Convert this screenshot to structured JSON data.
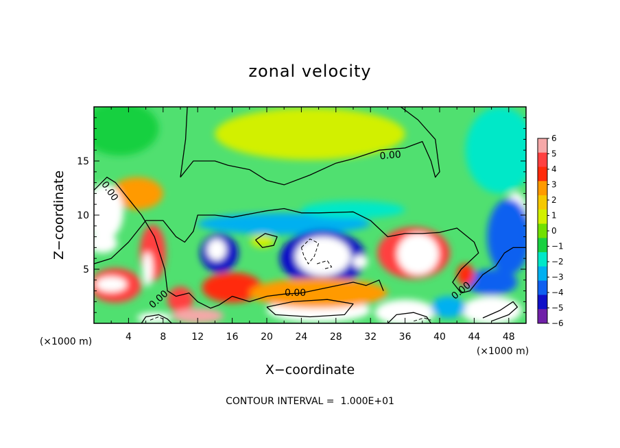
{
  "chart_data": {
    "type": "heatmap",
    "title": "zonal velocity",
    "xlabel": "X−coordinate",
    "ylabel": "Z−coordinate",
    "x_unit": "(×1000 m)",
    "y_unit": "(×1000 m)",
    "xlim": [
      0,
      50
    ],
    "ylim": [
      0,
      20
    ],
    "x_ticks": [
      4,
      8,
      12,
      16,
      20,
      24,
      28,
      32,
      36,
      40,
      44,
      48
    ],
    "y_ticks": [
      5,
      10,
      15
    ],
    "colorbar": {
      "min": -6,
      "max": 6,
      "ticks": [
        6,
        5,
        4,
        3,
        2,
        1,
        0,
        -1,
        -2,
        -3,
        -4,
        -5,
        -6
      ],
      "tick_labels": [
        "6",
        "5",
        "4",
        "3",
        "2",
        "1",
        "0",
        "−1",
        "−2",
        "−3",
        "−4",
        "−5",
        "−6"
      ],
      "colors": [
        "#f5a8a8",
        "#ff4040",
        "#ff2a0a",
        "#ff9a00",
        "#f5c800",
        "#d2f000",
        "#70e000",
        "#18d040",
        "#00e8c8",
        "#00b0f0",
        "#1060f0",
        "#1010c8",
        "#7020a8"
      ],
      "placement": "right"
    },
    "contour_label": "0.00",
    "footer": "CONTOUR INTERVAL =  1.000E+01",
    "regions": [
      {
        "x": 25,
        "y": 17.5,
        "rx": 11,
        "ry": 2.4,
        "value": 0.8
      },
      {
        "x": 20,
        "y": 18,
        "rx": 4,
        "ry": 1.5,
        "value": 1.0
      },
      {
        "x": 3,
        "y": 18,
        "rx": 4.5,
        "ry": 2.5,
        "value": -1.5
      },
      {
        "x": 47,
        "y": 16,
        "rx": 4,
        "ry": 4,
        "value": -2.2
      },
      {
        "x": 5,
        "y": 12,
        "rx": 3,
        "ry": 1.5,
        "value": 2.5
      },
      {
        "x": 22,
        "y": 9.2,
        "rx": 10,
        "ry": 1.0,
        "value": -2.8
      },
      {
        "x": 30,
        "y": 10.5,
        "rx": 6,
        "ry": 0.8,
        "value": -1.7
      },
      {
        "x": 1.2,
        "y": 10.3,
        "rx": 2.2,
        "ry": 2.6,
        "value": -6.5
      },
      {
        "x": 1,
        "y": 7.4,
        "rx": 1.7,
        "ry": 0.9,
        "value": -6.5
      },
      {
        "x": 6.8,
        "y": 6.5,
        "rx": 1.5,
        "ry": 2.6,
        "value": 5.4
      },
      {
        "x": 6.2,
        "y": 5,
        "rx": 0.6,
        "ry": 1.6,
        "value": 6.6
      },
      {
        "x": 2.5,
        "y": 3.5,
        "rx": 3,
        "ry": 1.6,
        "value": 4.5
      },
      {
        "x": 2,
        "y": 3.6,
        "rx": 1.8,
        "ry": 0.7,
        "value": 6.6
      },
      {
        "x": 14.5,
        "y": 6.5,
        "rx": 2.2,
        "ry": 1.8,
        "value": -5.2
      },
      {
        "x": 14.2,
        "y": 6.8,
        "rx": 1.1,
        "ry": 1.0,
        "value": -6.5
      },
      {
        "x": 19.5,
        "y": 7.6,
        "rx": 1.4,
        "ry": 0.6,
        "value": 0.5
      },
      {
        "x": 26.5,
        "y": 6,
        "rx": 5,
        "ry": 2.6,
        "value": -5.5
      },
      {
        "x": 26.5,
        "y": 6.2,
        "rx": 3.2,
        "ry": 1.8,
        "value": -6.6
      },
      {
        "x": 30.8,
        "y": 5.7,
        "rx": 0.9,
        "ry": 0.6,
        "value": -6.6
      },
      {
        "x": 37,
        "y": 6.5,
        "rx": 4.2,
        "ry": 2.4,
        "value": 5.2
      },
      {
        "x": 37.5,
        "y": 6.4,
        "rx": 2.4,
        "ry": 1.9,
        "value": 6.6
      },
      {
        "x": 16,
        "y": 3.3,
        "rx": 3.5,
        "ry": 1.4,
        "value": 4.0
      },
      {
        "x": 10,
        "y": 2.2,
        "rx": 1.5,
        "ry": 1.2,
        "value": 4.5
      },
      {
        "x": 26,
        "y": 1.2,
        "rx": 6,
        "ry": 1.1,
        "value": 6.6
      },
      {
        "x": 26,
        "y": 2.8,
        "rx": 8,
        "ry": 1.4,
        "value": 3.0
      },
      {
        "x": 36,
        "y": 1.0,
        "rx": 3.5,
        "ry": 1.2,
        "value": -6.6
      },
      {
        "x": 46,
        "y": 1.2,
        "rx": 3.5,
        "ry": 1.3,
        "value": 6.6
      },
      {
        "x": 46,
        "y": 3.8,
        "rx": 3,
        "ry": 1.2,
        "value": -4.0
      },
      {
        "x": 48.8,
        "y": 9.5,
        "rx": 1.5,
        "ry": 2.6,
        "value": -6.6
      },
      {
        "x": 48,
        "y": 8,
        "rx": 2.5,
        "ry": 3.5,
        "value": -4.5
      },
      {
        "x": 43,
        "y": 4.5,
        "rx": 1.0,
        "ry": 1.0,
        "value": 3.5
      },
      {
        "x": 12,
        "y": 0.7,
        "rx": 3,
        "ry": 0.7,
        "value": 5.5
      },
      {
        "x": 7,
        "y": 0.5,
        "rx": 2,
        "ry": 0.5,
        "value": -6.6
      },
      {
        "x": 41,
        "y": 1.5,
        "rx": 2,
        "ry": 1.0,
        "value": -3.5
      }
    ],
    "contours": [
      {
        "points": [
          [
            0,
            5.5
          ],
          [
            2,
            6
          ],
          [
            4,
            7.5
          ],
          [
            6,
            9.5
          ],
          [
            8,
            9.5
          ],
          [
            9.5,
            8
          ],
          [
            10.5,
            7.5
          ],
          [
            11.5,
            8.5
          ],
          [
            12,
            10
          ],
          [
            14,
            10
          ],
          [
            16,
            9.8
          ],
          [
            20,
            10.4
          ],
          [
            22,
            10.6
          ],
          [
            24,
            10.2
          ],
          [
            26,
            10.2
          ],
          [
            30,
            10.3
          ],
          [
            32,
            9.5
          ],
          [
            34,
            8
          ],
          [
            36,
            8.3
          ],
          [
            38,
            8.3
          ],
          [
            40,
            8.4
          ],
          [
            42,
            8.8
          ],
          [
            44,
            7.5
          ],
          [
            44.5,
            6.5
          ],
          [
            42.5,
            5
          ],
          [
            41.5,
            3.8
          ],
          [
            42.5,
            2.8
          ],
          [
            43.5,
            3
          ],
          [
            45,
            4.5
          ],
          [
            46.5,
            5.3
          ],
          [
            47.5,
            6.5
          ],
          [
            48.5,
            7
          ],
          [
            50,
            7
          ]
        ]
      },
      {
        "points": [
          [
            0,
            12.3
          ],
          [
            1.5,
            13.5
          ],
          [
            2.5,
            13
          ],
          [
            4,
            11.5
          ],
          [
            5.5,
            10
          ],
          [
            7,
            8
          ],
          [
            8.2,
            5
          ],
          [
            8.5,
            3
          ],
          [
            9.5,
            2.5
          ],
          [
            11,
            2.8
          ],
          [
            12,
            2
          ],
          [
            13.5,
            1.4
          ],
          [
            14.5,
            1.7
          ],
          [
            16,
            2.5
          ],
          [
            18,
            2
          ],
          [
            20,
            2.5
          ],
          [
            22,
            2.7
          ],
          [
            24,
            2.8
          ],
          [
            27,
            3.3
          ],
          [
            30,
            3.8
          ],
          [
            31.5,
            3.5
          ],
          [
            33,
            4
          ],
          [
            33.5,
            3
          ]
        ]
      },
      {
        "points": [
          [
            10,
            13.5
          ],
          [
            11.5,
            15
          ],
          [
            14,
            15
          ],
          [
            15.5,
            14.6
          ],
          [
            18,
            14.2
          ],
          [
            20,
            13.2
          ],
          [
            22,
            12.8
          ],
          [
            25,
            13.7
          ],
          [
            28,
            14.8
          ],
          [
            30,
            15.2
          ],
          [
            33,
            16
          ],
          [
            36,
            16.2
          ],
          [
            38,
            16.8
          ],
          [
            39,
            15
          ],
          [
            39.5,
            13.5
          ],
          [
            40,
            14
          ],
          [
            39.5,
            17
          ],
          [
            37.5,
            18.8
          ],
          [
            35.5,
            20
          ]
        ]
      },
      {
        "points": [
          [
            10,
            13.5
          ],
          [
            10.6,
            17
          ],
          [
            10.8,
            20
          ]
        ]
      },
      {
        "points": [
          [
            18.7,
            7.7
          ],
          [
            19.8,
            8.3
          ],
          [
            21.2,
            8
          ],
          [
            20.8,
            7.2
          ],
          [
            19.5,
            7
          ],
          [
            18.7,
            7.7
          ]
        ]
      },
      {
        "points": [
          [
            20,
            1.5
          ],
          [
            23,
            2
          ],
          [
            27,
            2.2
          ],
          [
            30,
            1.8
          ],
          [
            29,
            0.8
          ],
          [
            25,
            0.6
          ],
          [
            21,
            0.8
          ],
          [
            20,
            1.5
          ]
        ]
      },
      {
        "points": [
          [
            45,
            0.5
          ],
          [
            47,
            1.2
          ],
          [
            48.5,
            2
          ],
          [
            49,
            1.5
          ],
          [
            48,
            0.8
          ],
          [
            46,
            0.2
          ]
        ]
      },
      {
        "points": [
          [
            5.5,
            0
          ],
          [
            6,
            0.6
          ],
          [
            7.5,
            0.8
          ],
          [
            8.5,
            0.4
          ],
          [
            9,
            0
          ]
        ]
      },
      {
        "points": [
          [
            34,
            0
          ],
          [
            35,
            0.8
          ],
          [
            37,
            1.0
          ],
          [
            38.5,
            0.6
          ],
          [
            39,
            0
          ]
        ]
      }
    ],
    "dashed_contours": [
      {
        "points": [
          [
            24,
            7
          ],
          [
            25,
            7.8
          ],
          [
            26,
            7.4
          ],
          [
            25.5,
            6.2
          ],
          [
            24.8,
            5.5
          ],
          [
            24.3,
            6.2
          ],
          [
            24,
            7
          ]
        ]
      },
      {
        "points": [
          [
            25.8,
            5.5
          ],
          [
            27,
            5.8
          ],
          [
            27.5,
            5.2
          ],
          [
            26.5,
            5
          ]
        ]
      },
      {
        "points": [
          [
            37,
            0.2
          ],
          [
            38.2,
            0.5
          ],
          [
            39,
            0.3
          ]
        ]
      },
      {
        "points": [
          [
            6.5,
            0.3
          ],
          [
            7.5,
            0.6
          ],
          [
            8.2,
            0.3
          ]
        ]
      }
    ],
    "contour_label_positions": [
      {
        "x": 34.3,
        "y": 15.5,
        "angle": -5
      },
      {
        "x": 1.8,
        "y": 12.2,
        "angle": 55
      },
      {
        "x": 7.5,
        "y": 2.2,
        "angle": -42
      },
      {
        "x": 23.3,
        "y": 2.8,
        "angle": 0
      },
      {
        "x": 42.5,
        "y": 3.0,
        "angle": -40
      }
    ]
  }
}
